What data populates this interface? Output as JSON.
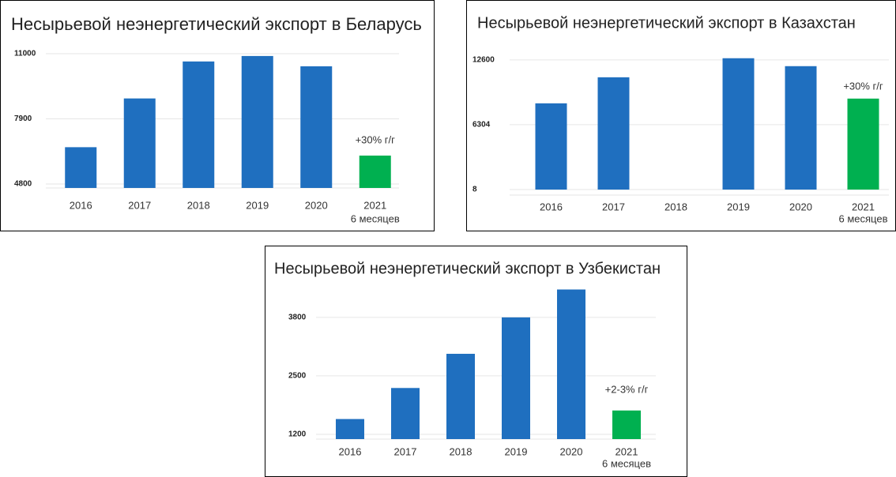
{
  "chart_data": [
    {
      "type": "bar",
      "title": "Несырьевой неэнергетический экспорт в Беларусь",
      "categories": [
        "2016",
        "2017",
        "2018",
        "2019",
        "2020",
        "2021"
      ],
      "period_note": "6 месяцев",
      "values": [
        6550,
        8870,
        10630,
        10890,
        10400,
        6150
      ],
      "colors": [
        "#1f6fbf",
        "#1f6fbf",
        "#1f6fbf",
        "#1f6fbf",
        "#1f6fbf",
        "#00b050"
      ],
      "annotation": "+30% г/г",
      "ylim": [
        4610,
        11300
      ],
      "yticks": [
        4800,
        7900,
        11000
      ],
      "grid": true
    },
    {
      "type": "bar",
      "title": "Несырьевой неэнергетический экспорт в Казахстан",
      "categories": [
        "2016",
        "2017",
        "2018",
        "2019",
        "2020",
        "2021"
      ],
      "period_note": "6 месяцев",
      "values": [
        8380,
        10910,
        null,
        12760,
        11990,
        8840
      ],
      "colors": [
        "#1f6fbf",
        "#1f6fbf",
        "#1f6fbf",
        "#1f6fbf",
        "#1f6fbf",
        "#00b050"
      ],
      "annotation": "+30% г/г",
      "ylim": [
        -530,
        13200
      ],
      "yticks": [
        8,
        6304,
        12600
      ],
      "grid": true
    },
    {
      "type": "bar",
      "title": "Несырьевой неэнергетический экспорт в Узбекистан",
      "categories": [
        "2016",
        "2017",
        "2018",
        "2019",
        "2020",
        "2021"
      ],
      "period_note": "6 месяцев",
      "values": [
        1540,
        2230,
        2990,
        3800,
        4420,
        1730
      ],
      "colors": [
        "#1f6fbf",
        "#1f6fbf",
        "#1f6fbf",
        "#1f6fbf",
        "#1f6fbf",
        "#00b050"
      ],
      "annotation": "+2-3% г/г",
      "ylim": [
        1094,
        4500
      ],
      "yticks": [
        1200,
        2500,
        3800
      ],
      "grid": true
    }
  ]
}
